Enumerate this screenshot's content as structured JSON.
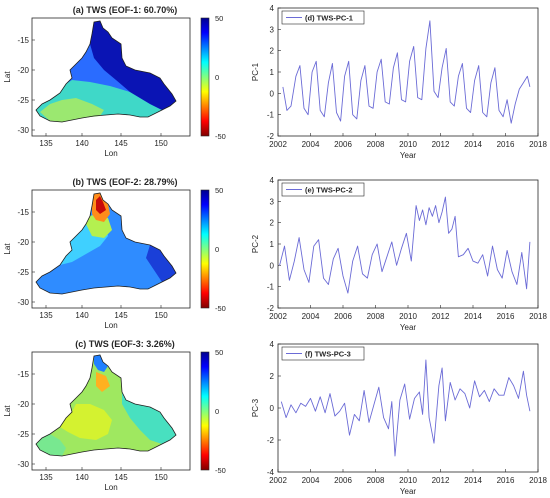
{
  "colorbar": {
    "ticks": [
      "50",
      "0",
      "-50"
    ],
    "stops": [
      "#00008f",
      "#0000ff",
      "#0080ff",
      "#00ffff",
      "#80ff80",
      "#ffff00",
      "#ff8000",
      "#ff0000",
      "#800000"
    ]
  },
  "maps": [
    {
      "id": "eof1",
      "title": "(a) TWS (EOF-1: 60.70%)",
      "xlabel": "Lon",
      "ylabel": "Lat",
      "xticks": [
        "135",
        "140",
        "145",
        "150"
      ],
      "yticks": [
        "-15",
        "-20",
        "-25",
        "-30"
      ],
      "pattern_note": "north and east strongly positive (blue), southwest moderate (cyan-green)"
    },
    {
      "id": "eof2",
      "title": "(b) TWS (EOF-2: 28.79%)",
      "xlabel": "Lon",
      "ylabel": "Lat",
      "xticks": [
        "135",
        "140",
        "145",
        "150"
      ],
      "yticks": [
        "-15",
        "-20",
        "-25",
        "-30"
      ]
    },
    {
      "id": "eof3",
      "title": "(c) TWS (EOF-3: 3.26%)",
      "xlabel": "Lon",
      "ylabel": "Lat",
      "xticks": [
        "135",
        "140",
        "145",
        "150"
      ],
      "yticks": [
        "-15",
        "-20",
        "-25",
        "-30"
      ]
    }
  ],
  "chart_data": [
    {
      "type": "line",
      "legend": "(d) TWS-PC-1",
      "xlabel": "Year",
      "ylabel": "PC-1",
      "xlim": [
        2002,
        2018
      ],
      "ylim": [
        -2,
        4
      ],
      "xticks": [
        "2002",
        "2004",
        "2006",
        "2008",
        "2010",
        "2012",
        "2014",
        "2016",
        "2018"
      ],
      "yticks": [
        "4",
        "3",
        "2",
        "1",
        "0",
        "-1",
        "-2"
      ],
      "color": "#6b6bd6",
      "x": [
        2002.3,
        2002.55,
        2002.8,
        2003.1,
        2003.35,
        2003.6,
        2003.85,
        2004.1,
        2004.35,
        2004.6,
        2004.85,
        2005.1,
        2005.35,
        2005.6,
        2005.85,
        2006.1,
        2006.35,
        2006.6,
        2006.85,
        2007.1,
        2007.35,
        2007.6,
        2007.85,
        2008.1,
        2008.35,
        2008.6,
        2008.85,
        2009.1,
        2009.35,
        2009.6,
        2009.85,
        2010.1,
        2010.35,
        2010.6,
        2010.85,
        2011.1,
        2011.35,
        2011.6,
        2011.85,
        2012.1,
        2012.35,
        2012.6,
        2012.85,
        2013.1,
        2013.35,
        2013.6,
        2013.85,
        2014.1,
        2014.35,
        2014.6,
        2014.85,
        2015.1,
        2015.35,
        2015.6,
        2015.85,
        2016.1,
        2016.35,
        2016.6,
        2016.85,
        2017.1,
        2017.35,
        2017.5
      ],
      "y": [
        0.3,
        -0.8,
        -0.6,
        0.8,
        1.3,
        -0.7,
        -1.0,
        1.0,
        1.5,
        -0.8,
        -1.1,
        0.5,
        1.4,
        -0.9,
        -1.3,
        0.8,
        1.5,
        -1.0,
        -1.2,
        0.6,
        1.3,
        -0.6,
        -0.7,
        1.0,
        1.6,
        -0.4,
        -0.5,
        1.2,
        1.9,
        -0.3,
        -0.4,
        1.5,
        2.2,
        -0.2,
        -0.3,
        2.1,
        3.4,
        0.1,
        -0.2,
        1.2,
        2.1,
        -0.4,
        -0.6,
        0.8,
        1.4,
        -0.7,
        -0.9,
        0.6,
        1.3,
        -0.9,
        -1.1,
        0.5,
        1.2,
        -0.8,
        -1.1,
        -0.3,
        -1.4,
        -0.5,
        0.2,
        0.5,
        0.8,
        0.3
      ]
    },
    {
      "type": "line",
      "legend": "(e) TWS-PC-2",
      "xlabel": "Year",
      "ylabel": "PC-2",
      "xlim": [
        2002,
        2018
      ],
      "ylim": [
        -2,
        4
      ],
      "xticks": [
        "2002",
        "2004",
        "2006",
        "2008",
        "2010",
        "2012",
        "2014",
        "2016",
        "2018"
      ],
      "yticks": [
        "4",
        "3",
        "2",
        "1",
        "0",
        "-1",
        "-2"
      ],
      "color": "#6b6bd6",
      "x": [
        2002.1,
        2002.4,
        2002.7,
        2003.0,
        2003.3,
        2003.6,
        2003.9,
        2004.2,
        2004.5,
        2004.8,
        2005.1,
        2005.4,
        2005.7,
        2006.0,
        2006.3,
        2006.6,
        2006.9,
        2007.2,
        2007.5,
        2007.8,
        2008.1,
        2008.4,
        2008.7,
        2009.0,
        2009.3,
        2009.6,
        2009.9,
        2010.2,
        2010.5,
        2010.7,
        2010.9,
        2011.1,
        2011.3,
        2011.5,
        2011.7,
        2011.9,
        2012.1,
        2012.3,
        2012.5,
        2012.7,
        2012.9,
        2013.1,
        2013.4,
        2013.7,
        2014.0,
        2014.3,
        2014.6,
        2014.9,
        2015.2,
        2015.5,
        2015.8,
        2016.1,
        2016.4,
        2016.7,
        2017.0,
        2017.3,
        2017.5
      ],
      "y": [
        0.0,
        0.9,
        -0.7,
        0.2,
        1.3,
        -0.2,
        -0.8,
        0.9,
        1.2,
        -0.6,
        -0.9,
        0.3,
        0.8,
        -0.5,
        -1.3,
        0.2,
        0.9,
        -0.4,
        -0.6,
        0.5,
        1.0,
        -0.3,
        0.4,
        1.1,
        0.0,
        0.8,
        1.5,
        0.2,
        2.8,
        2.1,
        2.6,
        1.9,
        2.7,
        2.3,
        2.8,
        2.0,
        2.5,
        3.2,
        1.5,
        1.7,
        2.3,
        0.4,
        0.5,
        0.8,
        0.2,
        0.1,
        0.5,
        -0.5,
        0.9,
        -0.2,
        -0.6,
        0.7,
        -0.3,
        -0.9,
        0.6,
        -1.1,
        1.1
      ]
    },
    {
      "type": "line",
      "legend": "(f) TWS-PC-3",
      "xlabel": "Year",
      "ylabel": "PC-3",
      "xlim": [
        2002,
        2018
      ],
      "ylim": [
        -4,
        4
      ],
      "xticks": [
        "2002",
        "2004",
        "2006",
        "2008",
        "2010",
        "2012",
        "2014",
        "2016",
        "2018"
      ],
      "yticks": [
        "4",
        "2",
        "0",
        "-2",
        "-4"
      ],
      "color": "#6b6bd6",
      "x": [
        2002.2,
        2002.5,
        2002.8,
        2003.1,
        2003.4,
        2003.7,
        2004.0,
        2004.3,
        2004.6,
        2004.9,
        2005.2,
        2005.5,
        2005.8,
        2006.1,
        2006.4,
        2006.7,
        2007.0,
        2007.3,
        2007.6,
        2007.9,
        2008.2,
        2008.5,
        2008.8,
        2009.0,
        2009.2,
        2009.5,
        2009.8,
        2010.1,
        2010.4,
        2010.7,
        2010.9,
        2011.1,
        2011.3,
        2011.6,
        2011.9,
        2012.1,
        2012.3,
        2012.6,
        2012.9,
        2013.2,
        2013.5,
        2013.8,
        2014.1,
        2014.4,
        2014.7,
        2015.0,
        2015.3,
        2015.6,
        2015.9,
        2016.2,
        2016.5,
        2016.8,
        2017.1,
        2017.3,
        2017.5
      ],
      "y": [
        0.4,
        -0.6,
        0.2,
        -0.3,
        0.3,
        0.1,
        0.6,
        -0.2,
        0.7,
        -0.3,
        0.9,
        -0.5,
        -0.2,
        0.3,
        -1.7,
        -0.4,
        -0.8,
        1.1,
        -0.9,
        0.2,
        1.3,
        -0.6,
        -1.3,
        0.4,
        -3.0,
        0.5,
        1.5,
        -0.7,
        0.6,
        1.0,
        -0.4,
        3.0,
        -0.6,
        -2.2,
        1.4,
        2.5,
        -0.8,
        1.6,
        0.5,
        1.2,
        0.9,
        0.0,
        1.7,
        0.7,
        1.1,
        0.4,
        1.2,
        0.8,
        0.8,
        1.9,
        1.4,
        0.6,
        2.3,
        0.8,
        -0.2
      ]
    }
  ]
}
